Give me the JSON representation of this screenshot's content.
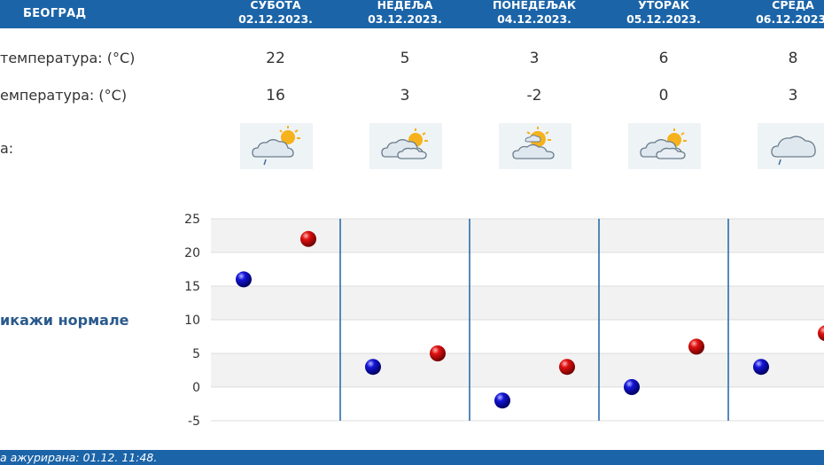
{
  "header": {
    "city": "БЕОГРАД",
    "days": [
      {
        "name": "СУБОТА",
        "date": "02.12.2023."
      },
      {
        "name": "НЕДЕЉА",
        "date": "03.12.2023."
      },
      {
        "name": "ПОНЕДЕЉАК",
        "date": "04.12.2023."
      },
      {
        "name": "УТОРАК",
        "date": "05.12.2023."
      },
      {
        "name": "СРЕДА",
        "date": "06.12.2023."
      }
    ]
  },
  "rows": {
    "max_label": "температура: (°C)",
    "min_label": "емпература: (°C)",
    "icon_label": "а:",
    "max_values": [
      "22",
      "5",
      "3",
      "6",
      "8"
    ],
    "min_values": [
      "16",
      "3",
      "-2",
      "0",
      "3"
    ]
  },
  "icons": [
    "cloud-sun-rain-icon",
    "cloud-sun-icon",
    "sun-cloud-icon",
    "cloud-sun-icon",
    "cloud-rain-icon"
  ],
  "normale_label": "икажи нормале",
  "footer": {
    "text": "а ажурирана:  01.12. 11:48."
  },
  "colors": {
    "header": "#1b64a8",
    "max_point": "#cc0000",
    "min_point": "#0000aa"
  },
  "chart_data": {
    "type": "scatter",
    "ylim": [
      -5,
      25
    ],
    "yticks": [
      "25",
      "20",
      "15",
      "10",
      "5",
      "0",
      "-5"
    ],
    "categories": [
      "02.12.2023.",
      "03.12.2023.",
      "04.12.2023.",
      "05.12.2023.",
      "06.12.2023."
    ],
    "series": [
      {
        "values": [
          16,
          3,
          -2,
          0,
          3
        ],
        "color": "#0000aa"
      },
      {
        "values": [
          22,
          5,
          3,
          6,
          8
        ],
        "color": "#cc0000"
      }
    ]
  }
}
